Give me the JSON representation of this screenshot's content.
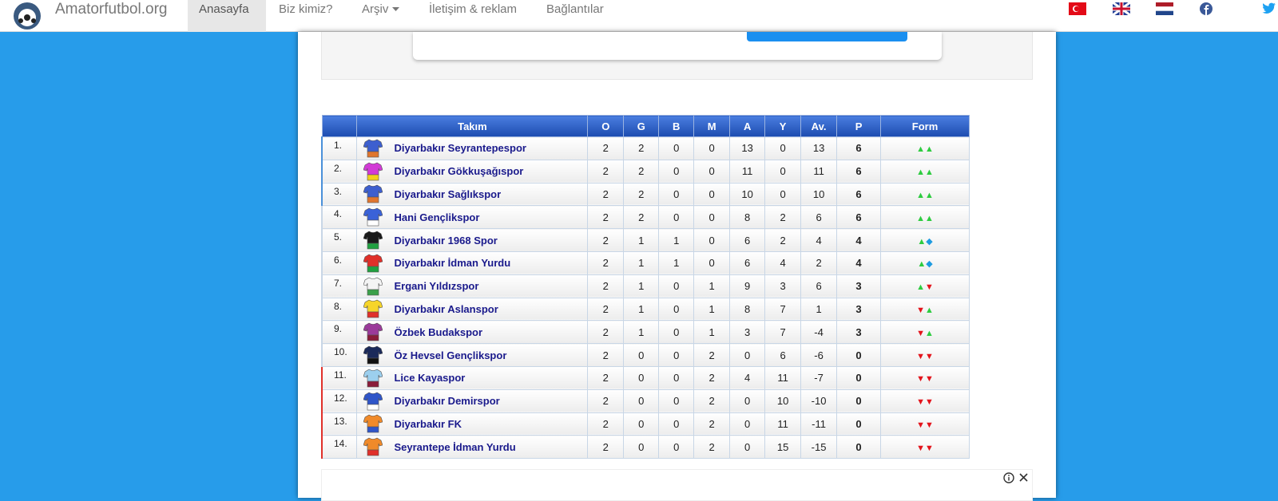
{
  "navbar": {
    "brand": "Amatorfutbol.org",
    "menu": [
      "Anasayfa",
      "Biz kimiz?",
      "Arşiv",
      "İletişim & reklam",
      "Bağlantılar"
    ]
  },
  "table": {
    "headers": [
      "Takım",
      "O",
      "G",
      "B",
      "M",
      "A",
      "Y",
      "Av.",
      "P",
      "Form"
    ],
    "rows": [
      {
        "rank": "1.",
        "team": "Diyarbakır Seyrantepespor",
        "stats": [
          2,
          2,
          0,
          0,
          13,
          0,
          13,
          6
        ],
        "form": "▲▲",
        "kit": [
          "#3d5fcf",
          "#e0762e"
        ],
        "marker_color": "#4a90d9"
      },
      {
        "rank": "2.",
        "team": "Diyarbakır Gökkuşağıspor",
        "stats": [
          2,
          2,
          0,
          0,
          11,
          0,
          11,
          6
        ],
        "form": "▲▲",
        "kit": [
          "#d23ad6",
          "#f2d21a"
        ],
        "marker_color": "#4a90d9"
      },
      {
        "rank": "3.",
        "team": "Diyarbakır Sağlıkspor",
        "stats": [
          2,
          2,
          0,
          0,
          10,
          0,
          10,
          6
        ],
        "form": "▲▲",
        "kit": [
          "#3d5fcf",
          "#e0762e"
        ],
        "marker_color": "#4a90d9"
      },
      {
        "rank": "4.",
        "team": "Hani Gençlikspor",
        "stats": [
          2,
          2,
          0,
          0,
          8,
          2,
          6,
          6
        ],
        "form": "▲▲",
        "kit": [
          "#3a62d8",
          "#ffffff"
        ]
      },
      {
        "rank": "5.",
        "team": "Diyarbakır 1968 Spor",
        "stats": [
          2,
          1,
          1,
          0,
          6,
          2,
          4,
          4
        ],
        "form": "▲◆",
        "kit": [
          "#1a1a1a",
          "#20a040"
        ]
      },
      {
        "rank": "6.",
        "team": "Diyarbakır İdman Yurdu",
        "stats": [
          2,
          1,
          1,
          0,
          6,
          4,
          2,
          4
        ],
        "form": "▲◆",
        "kit": [
          "#e0302a",
          "#20a040"
        ]
      },
      {
        "rank": "7.",
        "team": "Ergani Yıldızspor",
        "stats": [
          2,
          1,
          0,
          1,
          9,
          3,
          6,
          3
        ],
        "form": "▲▼",
        "kit": [
          "#f4f4f4",
          "#3aa04a"
        ]
      },
      {
        "rank": "8.",
        "team": "Diyarbakır Aslanspor",
        "stats": [
          2,
          1,
          0,
          1,
          8,
          7,
          1,
          3
        ],
        "form": "▼▲",
        "kit": [
          "#f6d52a",
          "#e0302a"
        ]
      },
      {
        "rank": "9.",
        "team": "Özbek Budakspor",
        "stats": [
          2,
          1,
          0,
          1,
          3,
          7,
          -4,
          3
        ],
        "form": "▼▲",
        "kit": [
          "#9b3a9a",
          "#8a1c3a"
        ]
      },
      {
        "rank": "10.",
        "team": "Öz Hevsel Gençlikspor",
        "stats": [
          2,
          0,
          0,
          2,
          0,
          6,
          -6,
          0
        ],
        "form": "▼▼",
        "kit": [
          "#1b2a5a",
          "#111111"
        ]
      },
      {
        "rank": "11.",
        "team": "Lice Kayaspor",
        "stats": [
          2,
          0,
          0,
          2,
          4,
          11,
          -7,
          0
        ],
        "form": "▼▼",
        "kit": [
          "#9ccfee",
          "#8a1c3a"
        ],
        "marker_color": "#e0302a"
      },
      {
        "rank": "12.",
        "team": "Diyarbakır Demirspor",
        "stats": [
          2,
          0,
          0,
          2,
          0,
          10,
          -10,
          0
        ],
        "form": "▼▼",
        "kit": [
          "#2f55c8",
          "#ffffff"
        ],
        "marker_color": "#e0302a"
      },
      {
        "rank": "13.",
        "team": "Diyarbakır FK",
        "stats": [
          2,
          0,
          0,
          2,
          0,
          11,
          -11,
          0
        ],
        "form": "▼▼",
        "kit": [
          "#f08a2a",
          "#2f55c8"
        ],
        "marker_color": "#e0302a"
      },
      {
        "rank": "14.",
        "team": "Seyrantepe İdman Yurdu",
        "stats": [
          2,
          0,
          0,
          2,
          0,
          15,
          -15,
          0
        ],
        "form": "▼▼",
        "kit": [
          "#f08a2a",
          "#e0302a"
        ],
        "marker_color": "#e0302a"
      }
    ]
  }
}
